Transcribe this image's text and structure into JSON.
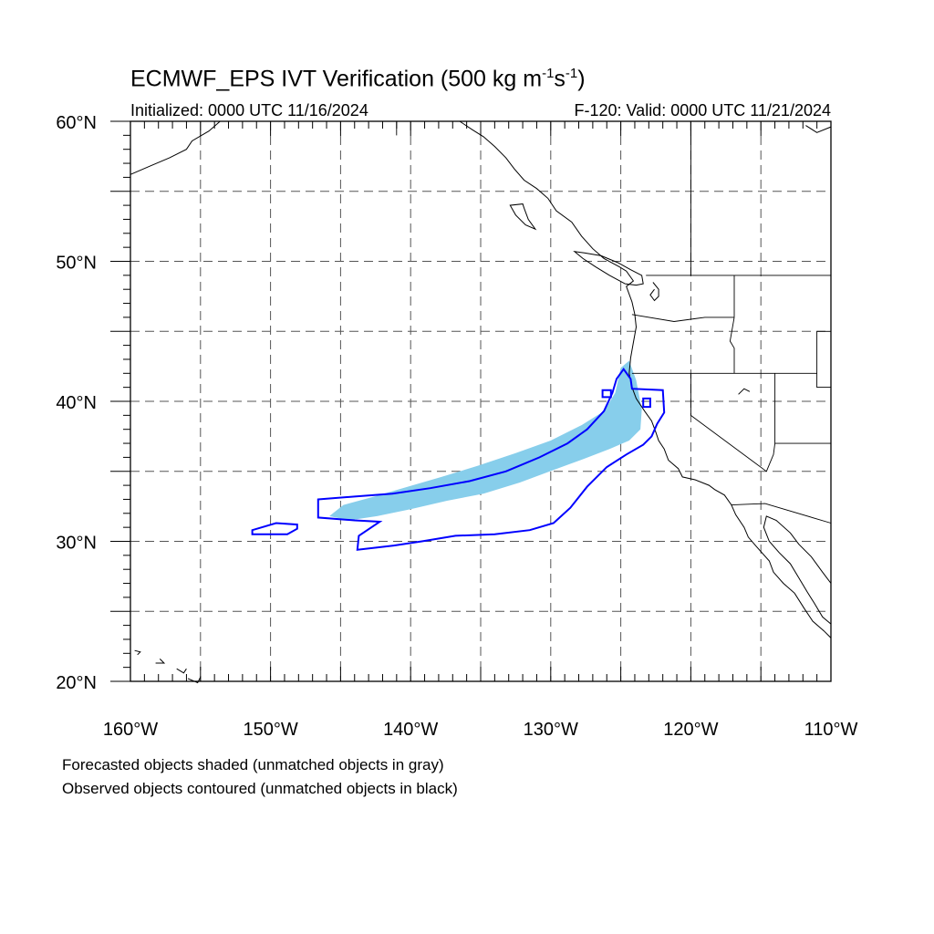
{
  "title": "ECMWF_EPS IVT Verification (500 kg m",
  "title_sup1": "-1",
  "title_mid": "s",
  "title_sup2": "-1",
  "title_end": ")",
  "initialized": "Initialized: 0000 UTC 11/16/2024",
  "valid": "F-120: Valid: 0000 UTC 11/21/2024",
  "notes": [
    "Forecasted objects shaded (unmatched objects in gray)",
    "Observed objects contoured (unmatched objects in black)"
  ],
  "map": {
    "lon_range": [
      -160,
      -110
    ],
    "lat_range": [
      20,
      60
    ],
    "x_ticks": [
      {
        "value": -160,
        "label": "160°W"
      },
      {
        "value": -150,
        "label": "150°W"
      },
      {
        "value": -140,
        "label": "140°W"
      },
      {
        "value": -130,
        "label": "130°W"
      },
      {
        "value": -120,
        "label": "120°W"
      },
      {
        "value": -110,
        "label": "110°W"
      }
    ],
    "y_ticks": [
      {
        "value": 20,
        "label": "20°N"
      },
      {
        "value": 30,
        "label": "30°N"
      },
      {
        "value": 40,
        "label": "40°N"
      },
      {
        "value": 50,
        "label": "50°N"
      },
      {
        "value": 60,
        "label": "60°N"
      }
    ],
    "grid_lons": [
      -155,
      -150,
      -145,
      -140,
      -135,
      -130,
      -125,
      -120,
      -115
    ],
    "grid_lats": [
      25,
      30,
      35,
      40,
      45,
      50,
      55
    ],
    "forecast_color": "#87ceeb",
    "observed_color": "#0000ff",
    "forecast_object": [
      [
        -145.8,
        31.8
      ],
      [
        -144.8,
        32.6
      ],
      [
        -142.6,
        33.2
      ],
      [
        -140.2,
        33.9
      ],
      [
        -137.8,
        34.6
      ],
      [
        -135.2,
        35.4
      ],
      [
        -132.5,
        36.3
      ],
      [
        -130.0,
        37.2
      ],
      [
        -127.8,
        38.3
      ],
      [
        -126.2,
        39.3
      ],
      [
        -125.4,
        40.6
      ],
      [
        -125.0,
        42.4
      ],
      [
        -124.4,
        42.9
      ],
      [
        -123.9,
        41.5
      ],
      [
        -123.5,
        39.4
      ],
      [
        -123.6,
        38.0
      ],
      [
        -124.4,
        37.2
      ],
      [
        -125.8,
        36.6
      ],
      [
        -127.6,
        35.9
      ],
      [
        -129.8,
        35.1
      ],
      [
        -132.2,
        34.2
      ],
      [
        -134.8,
        33.4
      ],
      [
        -137.4,
        32.9
      ],
      [
        -140.0,
        32.3
      ],
      [
        -142.4,
        31.8
      ],
      [
        -144.4,
        31.5
      ]
    ],
    "observed_objects": [
      [
        [
          -146.6,
          33.0
        ],
        [
          -144.0,
          33.2
        ],
        [
          -141.3,
          33.4
        ],
        [
          -138.6,
          33.8
        ],
        [
          -135.8,
          34.3
        ],
        [
          -133.2,
          35.0
        ],
        [
          -130.8,
          36.0
        ],
        [
          -128.8,
          37.0
        ],
        [
          -127.4,
          38.0
        ],
        [
          -126.2,
          39.3
        ],
        [
          -125.6,
          40.6
        ],
        [
          -125.3,
          41.6
        ],
        [
          -124.8,
          42.3
        ],
        [
          -124.3,
          41.6
        ],
        [
          -124.2,
          40.9
        ],
        [
          -122.0,
          40.8
        ],
        [
          -121.9,
          39.2
        ],
        [
          -122.4,
          38.4
        ],
        [
          -122.8,
          37.5
        ],
        [
          -123.4,
          36.9
        ],
        [
          -124.6,
          36.2
        ],
        [
          -126.0,
          35.3
        ],
        [
          -127.4,
          33.9
        ],
        [
          -128.6,
          32.4
        ],
        [
          -129.8,
          31.3
        ],
        [
          -131.5,
          30.8
        ],
        [
          -134.0,
          30.5
        ],
        [
          -136.8,
          30.4
        ],
        [
          -139.2,
          30.0
        ],
        [
          -141.2,
          29.7
        ],
        [
          -143.8,
          29.4
        ],
        [
          -143.7,
          30.4
        ],
        [
          -142.2,
          31.4
        ],
        [
          -144.0,
          31.5
        ],
        [
          -146.6,
          31.7
        ]
      ],
      [
        [
          -151.3,
          30.5
        ],
        [
          -148.8,
          30.5
        ],
        [
          -148.1,
          30.9
        ],
        [
          -148.1,
          31.2
        ],
        [
          -149.6,
          31.3
        ],
        [
          -151.3,
          30.8
        ]
      ],
      [
        [
          -126.3,
          40.8
        ],
        [
          -125.7,
          40.8
        ],
        [
          -125.7,
          40.3
        ],
        [
          -126.3,
          40.3
        ]
      ],
      [
        [
          -123.4,
          40.2
        ],
        [
          -122.9,
          40.2
        ],
        [
          -122.9,
          39.6
        ],
        [
          -123.4,
          39.6
        ]
      ]
    ],
    "coastlines": [
      [
        [
          -160.0,
          56.2
        ],
        [
          -158.6,
          56.8
        ],
        [
          -157.2,
          57.4
        ],
        [
          -156.0,
          58.0
        ],
        [
          -155.6,
          58.6
        ],
        [
          -154.4,
          59.3
        ],
        [
          -153.6,
          60.0
        ]
      ],
      [
        [
          -136.5,
          60.0
        ],
        [
          -135.6,
          59.4
        ],
        [
          -134.8,
          58.9
        ],
        [
          -134.0,
          58.2
        ],
        [
          -133.2,
          57.4
        ],
        [
          -132.6,
          56.6
        ],
        [
          -131.9,
          55.8
        ],
        [
          -131.0,
          55.2
        ],
        [
          -130.2,
          54.5
        ],
        [
          -129.6,
          53.6
        ],
        [
          -128.5,
          52.8
        ],
        [
          -127.8,
          51.8
        ],
        [
          -127.0,
          50.9
        ],
        [
          -126.2,
          50.2
        ],
        [
          -125.1,
          49.6
        ],
        [
          -124.6,
          49.3
        ],
        [
          -124.1,
          48.6
        ],
        [
          -124.6,
          48.2
        ],
        [
          -124.2,
          47.1
        ],
        [
          -124.0,
          46.2
        ],
        [
          -123.9,
          45.3
        ],
        [
          -124.1,
          44.2
        ],
        [
          -124.3,
          43.1
        ],
        [
          -124.4,
          42.0
        ],
        [
          -124.2,
          41.0
        ],
        [
          -123.9,
          40.2
        ],
        [
          -123.3,
          39.3
        ],
        [
          -122.8,
          38.6
        ],
        [
          -122.5,
          37.8
        ],
        [
          -122.3,
          37.2
        ],
        [
          -121.9,
          36.6
        ],
        [
          -121.6,
          35.8
        ],
        [
          -120.9,
          35.2
        ],
        [
          -120.6,
          34.6
        ],
        [
          -119.7,
          34.4
        ],
        [
          -118.7,
          34.0
        ],
        [
          -118.3,
          33.7
        ],
        [
          -117.6,
          33.3
        ],
        [
          -117.1,
          32.6
        ],
        [
          -116.8,
          31.9
        ],
        [
          -116.2,
          31.0
        ],
        [
          -115.9,
          30.3
        ],
        [
          -115.3,
          29.6
        ],
        [
          -114.4,
          28.6
        ],
        [
          -114.1,
          27.8
        ],
        [
          -113.4,
          27.0
        ],
        [
          -112.6,
          26.3
        ],
        [
          -111.9,
          25.2
        ],
        [
          -111.3,
          24.3
        ],
        [
          -110.5,
          23.6
        ],
        [
          -110.0,
          23.1
        ]
      ],
      [
        [
          -110.0,
          27.0
        ],
        [
          -110.6,
          27.8
        ],
        [
          -111.4,
          28.9
        ],
        [
          -112.3,
          29.8
        ],
        [
          -112.9,
          30.6
        ],
        [
          -113.9,
          31.5
        ],
        [
          -114.6,
          31.8
        ],
        [
          -114.8,
          31.0
        ],
        [
          -114.4,
          30.0
        ],
        [
          -113.7,
          29.2
        ],
        [
          -112.9,
          28.4
        ],
        [
          -112.3,
          27.4
        ],
        [
          -111.7,
          26.4
        ],
        [
          -111.2,
          25.6
        ],
        [
          -110.6,
          24.6
        ],
        [
          -110.0,
          24.1
        ]
      ],
      [
        [
          -124.7,
          48.4
        ],
        [
          -123.9,
          48.3
        ],
        [
          -123.4,
          48.4
        ],
        [
          -123.5,
          49.0
        ],
        [
          -124.3,
          49.4
        ],
        [
          -125.2,
          49.9
        ],
        [
          -126.4,
          50.4
        ],
        [
          -127.6,
          50.6
        ],
        [
          -128.3,
          50.7
        ],
        [
          -127.7,
          50.2
        ],
        [
          -126.8,
          49.6
        ],
        [
          -125.8,
          49.0
        ],
        [
          -124.7,
          48.4
        ]
      ],
      [
        [
          -131.9,
          53.8
        ],
        [
          -131.6,
          53.0
        ],
        [
          -131.1,
          52.3
        ],
        [
          -131.8,
          52.6
        ],
        [
          -132.5,
          53.3
        ],
        [
          -132.9,
          54.0
        ],
        [
          -132.0,
          54.1
        ],
        [
          -131.9,
          53.8
        ]
      ],
      [
        [
          -122.7,
          48.5
        ],
        [
          -122.3,
          48.0
        ],
        [
          -122.3,
          47.5
        ],
        [
          -122.6,
          47.2
        ],
        [
          -122.9,
          47.6
        ],
        [
          -122.6,
          48.0
        ]
      ],
      [
        [
          -110.0,
          59.6
        ],
        [
          -111.0,
          59.2
        ],
        [
          -111.8,
          59.7
        ]
      ],
      [
        [
          -116.6,
          40.5
        ],
        [
          -116.2,
          40.9
        ],
        [
          -115.8,
          40.7
        ]
      ],
      [
        [
          -155.9,
          20.2
        ],
        [
          -155.2,
          19.9
        ],
        [
          -155.0,
          20.3
        ]
      ],
      [
        [
          -156.7,
          20.9
        ],
        [
          -156.2,
          20.6
        ],
        [
          -156.0,
          20.9
        ]
      ],
      [
        [
          -157.9,
          21.6
        ],
        [
          -157.6,
          21.3
        ],
        [
          -158.2,
          21.3
        ]
      ],
      [
        [
          -159.7,
          22.2
        ],
        [
          -159.3,
          22.1
        ],
        [
          -159.5,
          21.9
        ]
      ]
    ],
    "borders": [
      [
        [
          -123.2,
          49.0
        ],
        [
          -110.0,
          49.0
        ]
      ],
      [
        [
          -141.0,
          60.0
        ],
        [
          -141.0,
          59.0
        ]
      ],
      [
        [
          -120.0,
          60.0
        ],
        [
          -120.0,
          49.0
        ]
      ],
      [
        [
          -124.2,
          42.0
        ],
        [
          -111.0,
          42.0
        ]
      ],
      [
        [
          -120.0,
          42.0
        ],
        [
          -120.0,
          39.0
        ],
        [
          -114.6,
          35.0
        ]
      ],
      [
        [
          -117.1,
          32.6
        ],
        [
          -114.7,
          32.7
        ],
        [
          -110.0,
          31.3
        ]
      ],
      [
        [
          -116.9,
          46.0
        ],
        [
          -116.9,
          49.0
        ]
      ],
      [
        [
          -116.9,
          46.0
        ],
        [
          -117.2,
          44.3
        ],
        [
          -116.9,
          43.8
        ],
        [
          -116.9,
          42.0
        ]
      ],
      [
        [
          -124.2,
          46.2
        ],
        [
          -121.2,
          45.7
        ],
        [
          -119.0,
          46.0
        ],
        [
          -116.9,
          46.0
        ]
      ],
      [
        [
          -114.0,
          42.0
        ],
        [
          -114.0,
          37.0
        ],
        [
          -114.1,
          36.2
        ],
        [
          -114.6,
          35.0
        ]
      ],
      [
        [
          -111.0,
          45.0
        ],
        [
          -110.0,
          45.0
        ]
      ],
      [
        [
          -111.0,
          45.0
        ],
        [
          -111.0,
          41.0
        ],
        [
          -110.0,
          41.0
        ]
      ],
      [
        [
          -114.0,
          37.0
        ],
        [
          -110.0,
          37.0
        ]
      ]
    ]
  }
}
